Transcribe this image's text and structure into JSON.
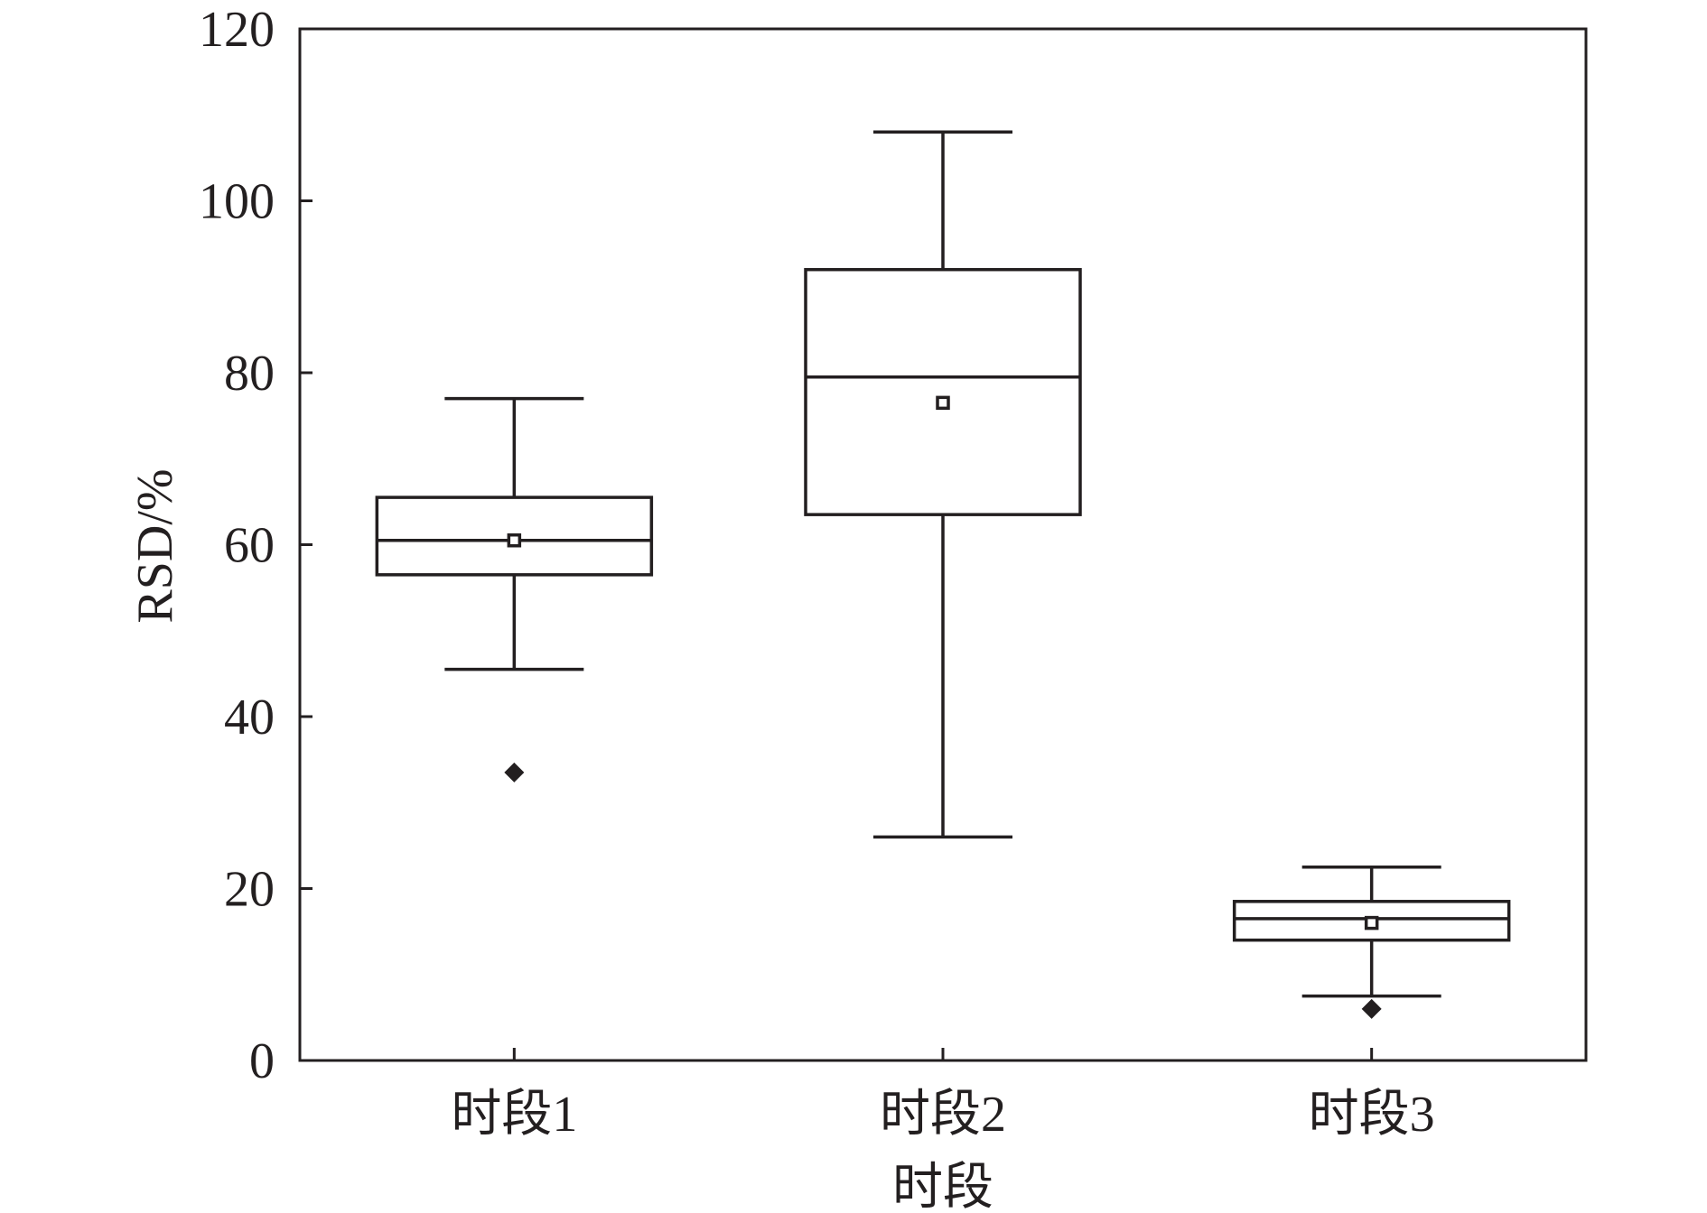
{
  "chart_data": {
    "type": "box",
    "title": "",
    "xlabel": "时段",
    "ylabel": "RSD/%",
    "ylim": [
      0,
      120
    ],
    "yticks": [
      0,
      20,
      40,
      60,
      80,
      100,
      120
    ],
    "grid": false,
    "categories": [
      "时段1",
      "时段2",
      "时段3"
    ],
    "boxes": [
      {
        "category": "时段1",
        "whisker_low": 45.5,
        "q1": 56.5,
        "median": 60.5,
        "q3": 65.5,
        "whisker_high": 77.0,
        "mean": 60.5,
        "outliers": [
          33.5
        ]
      },
      {
        "category": "时段2",
        "whisker_low": 26.0,
        "q1": 63.5,
        "median": 79.5,
        "q3": 92.0,
        "whisker_high": 108.0,
        "mean": 76.5,
        "outliers": []
      },
      {
        "category": "时段3",
        "whisker_low": 7.5,
        "q1": 14.0,
        "median": 16.5,
        "q3": 18.5,
        "whisker_high": 22.5,
        "mean": 16.0,
        "outliers": [
          6.0
        ]
      }
    ],
    "colors": {
      "ink": "#231f20",
      "background": "#ffffff"
    }
  }
}
